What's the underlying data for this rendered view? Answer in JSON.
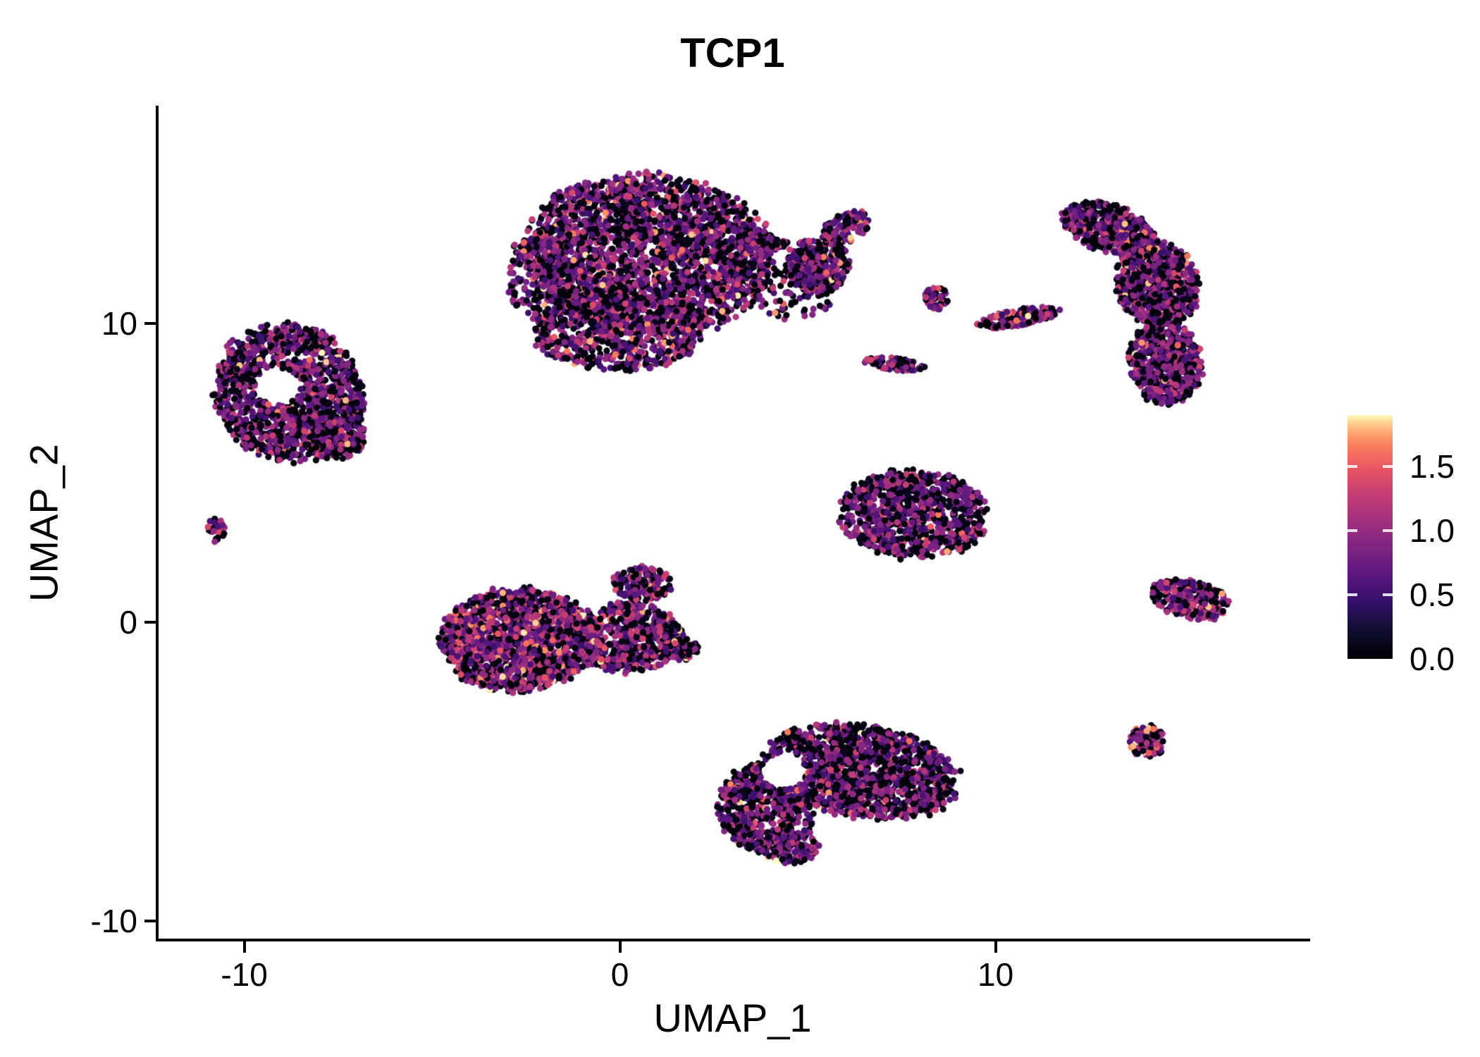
{
  "title": "TCP1",
  "x_axis": {
    "label": "UMAP_1",
    "ticks": [
      "-10",
      "0",
      "10"
    ]
  },
  "y_axis": {
    "label": "UMAP_2",
    "ticks": [
      "10",
      "0",
      "-10"
    ]
  },
  "legend": {
    "tick_labels": [
      "1.5",
      "1.0",
      "0.5",
      "0.0"
    ]
  },
  "colors": {
    "background": "#ffffff",
    "axis": "#000000",
    "text": "#000000"
  },
  "chart_data": {
    "type": "scatter",
    "title": "TCP1",
    "xlabel": "UMAP_1",
    "ylabel": "UMAP_2",
    "xlim": [
      -12.3,
      18.3
    ],
    "ylim": [
      -10.6,
      17.3
    ],
    "x_ticks": [
      {
        "value": -10,
        "label": "-10"
      },
      {
        "value": 0,
        "label": "0"
      },
      {
        "value": 10,
        "label": "10"
      }
    ],
    "y_ticks": [
      {
        "value": 10,
        "label": "10"
      },
      {
        "value": 0,
        "label": "0"
      },
      {
        "value": -10,
        "label": "-10"
      }
    ],
    "grid": false,
    "legend_position": "right",
    "point_radius_px": 4.6,
    "seed": 1337,
    "colorbar": {
      "domain": [
        0,
        1.9
      ],
      "ticks": [
        {
          "value": 1.5,
          "label": "1.5"
        },
        {
          "value": 1.0,
          "label": "1.0"
        },
        {
          "value": 0.5,
          "label": "0.5"
        },
        {
          "value": 0.0,
          "label": "0.0"
        }
      ],
      "stops": [
        [
          0.0,
          "#000004"
        ],
        [
          0.12,
          "#120d32"
        ],
        [
          0.23,
          "#331068"
        ],
        [
          0.34,
          "#5a167e"
        ],
        [
          0.45,
          "#7d2482"
        ],
        [
          0.57,
          "#a3307e"
        ],
        [
          0.68,
          "#c83e73"
        ],
        [
          0.78,
          "#e95562"
        ],
        [
          0.87,
          "#f97c5d"
        ],
        [
          0.93,
          "#fea873"
        ],
        [
          0.97,
          "#fed395"
        ],
        [
          1.0,
          "#fcfdbf"
        ]
      ]
    },
    "value_bands": [
      [
        0,
        0.12
      ],
      [
        0.45,
        1.0
      ],
      [
        1.0,
        1.35
      ],
      [
        1.35,
        1.9
      ]
    ],
    "clusters": [
      {
        "name": "top-main",
        "cx": 0.8,
        "cy": 12.3,
        "rx": 3.4,
        "ry": 2.7,
        "rot": -8,
        "n": 2600,
        "w": [
          0.37,
          0.41,
          0.17,
          0.05
        ]
      },
      {
        "name": "top-main-lower",
        "cx": 0.0,
        "cy": 9.7,
        "rx": 2.3,
        "ry": 1.3,
        "rot": 0,
        "n": 650,
        "w": [
          0.37,
          0.41,
          0.17,
          0.05
        ]
      },
      {
        "name": "top-main-left",
        "cx": -1.9,
        "cy": 11.6,
        "rx": 1.1,
        "ry": 1.7,
        "rot": 0,
        "n": 280,
        "w": [
          0.4,
          0.4,
          0.15,
          0.05
        ]
      },
      {
        "name": "top-bridge",
        "cx": 3.8,
        "cy": 12.8,
        "rx": 0.8,
        "ry": 0.3,
        "rot": -20,
        "n": 70,
        "w": [
          0.45,
          0.38,
          0.14,
          0.03
        ]
      },
      {
        "name": "top-wing",
        "cx": 5.3,
        "cy": 11.9,
        "rx": 0.85,
        "ry": 0.95,
        "rot": 0,
        "n": 350,
        "w": [
          0.4,
          0.4,
          0.16,
          0.04
        ]
      },
      {
        "name": "top-wing-arm",
        "cx": 6.0,
        "cy": 13.2,
        "rx": 0.75,
        "ry": 0.45,
        "rot": 35,
        "n": 120,
        "w": [
          0.38,
          0.4,
          0.17,
          0.05
        ]
      },
      {
        "name": "top-wing-sparse",
        "cx": 4.6,
        "cy": 11.0,
        "rx": 1.1,
        "ry": 0.9,
        "rot": 0,
        "n": 70,
        "w": [
          0.5,
          0.35,
          0.12,
          0.03
        ]
      },
      {
        "name": "right-crescent-top",
        "cx": 13.0,
        "cy": 13.2,
        "rx": 1.3,
        "ry": 0.8,
        "rot": -25,
        "n": 420,
        "w": [
          0.4,
          0.42,
          0.15,
          0.03
        ]
      },
      {
        "name": "right-crescent-mid",
        "cx": 14.3,
        "cy": 11.3,
        "rx": 1.1,
        "ry": 1.5,
        "rot": 10,
        "n": 650,
        "w": [
          0.4,
          0.42,
          0.15,
          0.03
        ]
      },
      {
        "name": "right-crescent-low",
        "cx": 14.5,
        "cy": 8.7,
        "rx": 1.0,
        "ry": 1.4,
        "rot": 5,
        "n": 520,
        "w": [
          0.4,
          0.42,
          0.15,
          0.03
        ]
      },
      {
        "name": "mini-round",
        "cx": 8.45,
        "cy": 10.85,
        "rx": 0.35,
        "ry": 0.4,
        "rot": 0,
        "n": 45,
        "w": [
          0.32,
          0.41,
          0.22,
          0.05
        ]
      },
      {
        "name": "mini-streak-long",
        "cx": 10.6,
        "cy": 10.2,
        "rx": 1.15,
        "ry": 0.28,
        "rot": 12,
        "n": 170,
        "w": [
          0.32,
          0.41,
          0.22,
          0.05
        ]
      },
      {
        "name": "mini-streak-short",
        "cx": 7.3,
        "cy": 8.65,
        "rx": 0.8,
        "ry": 0.22,
        "rot": -8,
        "n": 90,
        "w": [
          0.32,
          0.41,
          0.22,
          0.05
        ]
      },
      {
        "name": "left-ring",
        "cx": -8.8,
        "cy": 7.7,
        "rx": 2.0,
        "ry": 2.35,
        "rot": 10,
        "n": 1250,
        "w": [
          0.44,
          0.38,
          0.15,
          0.03
        ],
        "hole": {
          "x": -9.1,
          "y": 7.9,
          "r": 0.6
        }
      },
      {
        "name": "left-ring-lobe",
        "cx": -7.6,
        "cy": 6.3,
        "rx": 0.9,
        "ry": 0.9,
        "rot": 0,
        "n": 220,
        "w": [
          0.44,
          0.38,
          0.15,
          0.03
        ]
      },
      {
        "name": "tiny-left",
        "cx": -10.75,
        "cy": 3.1,
        "rx": 0.25,
        "ry": 0.4,
        "rot": 0,
        "n": 28,
        "w": [
          0.35,
          0.45,
          0.15,
          0.05
        ]
      },
      {
        "name": "mid-hot-main",
        "cx": -2.7,
        "cy": -0.6,
        "rx": 2.1,
        "ry": 1.75,
        "rot": 0,
        "n": 1500,
        "w": [
          0.3,
          0.34,
          0.26,
          0.1
        ]
      },
      {
        "name": "mid-hot-right",
        "cx": 0.2,
        "cy": -0.5,
        "rx": 1.5,
        "ry": 1.2,
        "rot": 0,
        "n": 550,
        "w": [
          0.38,
          0.36,
          0.2,
          0.06
        ]
      },
      {
        "name": "mid-hot-spur",
        "cx": 0.6,
        "cy": 1.3,
        "rx": 0.8,
        "ry": 0.6,
        "rot": 0,
        "n": 160,
        "w": [
          0.38,
          0.36,
          0.2,
          0.06
        ]
      },
      {
        "name": "mid-hot-tip",
        "cx": 1.6,
        "cy": -0.9,
        "rx": 0.5,
        "ry": 0.4,
        "rot": 0,
        "n": 80,
        "w": [
          0.38,
          0.36,
          0.2,
          0.06
        ]
      },
      {
        "name": "center-triangle",
        "cx": 7.8,
        "cy": 3.6,
        "rx": 2.0,
        "ry": 1.5,
        "rot": -5,
        "n": 950,
        "w": [
          0.42,
          0.4,
          0.15,
          0.03
        ]
      },
      {
        "name": "bottom-main",
        "cx": 6.4,
        "cy": -5.0,
        "rx": 2.7,
        "ry": 1.55,
        "rot": -12,
        "n": 1350,
        "w": [
          0.47,
          0.37,
          0.13,
          0.03
        ],
        "hole": {
          "x": 4.35,
          "y": -5.0,
          "r": 0.6
        }
      },
      {
        "name": "bottom-left-lobe",
        "cx": 3.9,
        "cy": -6.2,
        "rx": 1.3,
        "ry": 1.5,
        "rot": 0,
        "n": 550,
        "w": [
          0.42,
          0.38,
          0.16,
          0.04
        ],
        "hole": {
          "x": 4.35,
          "y": -5.0,
          "r": 0.6
        }
      },
      {
        "name": "bottom-tail",
        "cx": 4.5,
        "cy": -7.5,
        "rx": 0.8,
        "ry": 0.6,
        "rot": 0,
        "n": 150,
        "w": [
          0.45,
          0.38,
          0.14,
          0.03
        ]
      },
      {
        "name": "right-wedge",
        "cx": 15.2,
        "cy": 0.75,
        "rx": 1.1,
        "ry": 0.65,
        "rot": -18,
        "n": 240,
        "w": [
          0.33,
          0.4,
          0.22,
          0.05
        ]
      },
      {
        "name": "tiny-bottom-right",
        "cx": 14.05,
        "cy": -4.0,
        "rx": 0.5,
        "ry": 0.55,
        "rot": 0,
        "n": 95,
        "w": [
          0.3,
          0.35,
          0.27,
          0.08
        ]
      }
    ]
  }
}
